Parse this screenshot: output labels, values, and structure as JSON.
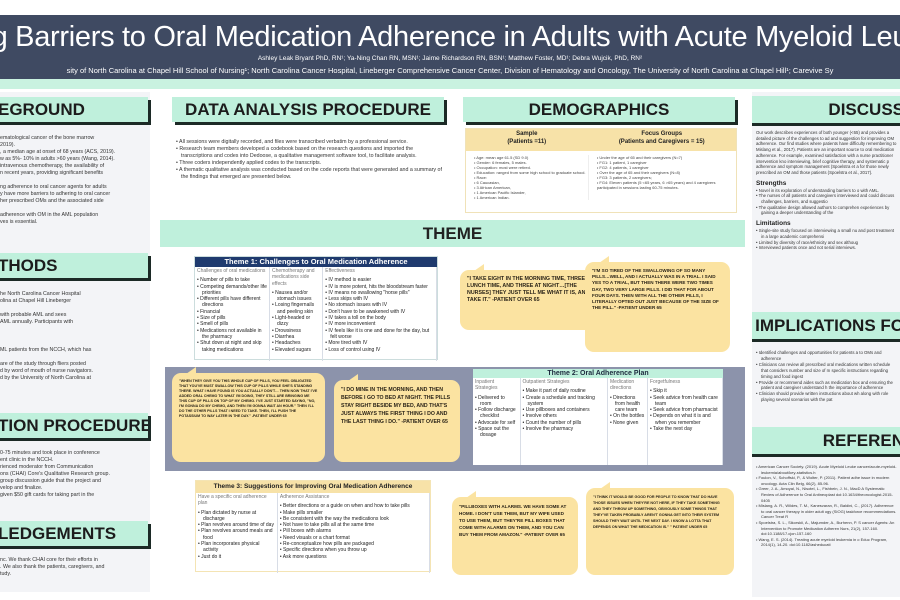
{
  "header": {
    "title": "nding Barriers to Oral Medication Adherence in Adults with Acute Myeloid Leukem",
    "authors": "Ashley Leak Bryant PhD, RN¹; Ya-Ning Chan RN, MSN¹; Jaime Richardson RN, BSN¹; Matthew Foster, MD¹; Debra Wujcik, PhD, RN²",
    "affiliations": "sity of North Carolina at Chapel Hill School of Nursing¹; North Carolina Cancer Hospital, Lineberger Comprehensive Cancer Center, Division of Hematology and Oncology, The University of North Carolina at Chapel Hill¹; Carevive Sy"
  },
  "background": {
    "heading": "EGROUND",
    "lines": [
      "ematological cancer of the bone marrow",
      " 2019).",
      ", a median age at onset of 68 years (ACS, 2019).",
      "w as 5%- 10% in adults >60 years (Wang, 2014).",
      "intravenous chemotherapy, the availability of",
      "n recent years, providing significant benefits",
      "",
      "ng adherence to oral cancer agents for adults",
      "y have more barriers to adhering to oral cancer",
      "her prescribed OMs and the associated side",
      "",
      "adherence with OM in the AML population",
      "ves is essential."
    ]
  },
  "methods": {
    "heading": "THODS",
    "lines": [
      "he North Carolina Cancer Hospital",
      "olina at Chapel Hill Lineberger",
      "",
      "with probable AML and sees",
      "AML annually. Participants with",
      "",
      "",
      "",
      "ML patients from the NCCH, which has",
      "",
      "are of the study through fliers posted",
      "d by word of mouth of nurse navigators.",
      "d by the University of North Carolina at"
    ]
  },
  "participation": {
    "heading": "TION PROCEDURE",
    "lines": [
      "0-75 minutes and took place in conference",
      "ent clinic in the NCCH.",
      "rienced moderator from Communication",
      "ons (CHAI) Core's Qualitative Research group.",
      "group discussion guide that the project and",
      "velop and finalize.",
      "given $50 gift cards for taking part in the"
    ]
  },
  "acknowledgements": {
    "heading": "LEDGEMENTS",
    "lines": [
      "nc. We thank CHAI core for their efforts in",
      ". We also thank the patients, caregivers, and",
      "tudy."
    ]
  },
  "data_analysis": {
    "heading": "DATA ANALYSIS PROCEDURE",
    "bullets": [
      "All sessions were digitally recorded, and files were transcribed verbatim by a professional service.",
      "Research team members developed a codebook based on the research questions and imported the transcriptions and codes into Dedoose, a qualitative management software tool, to facilitate analysis.",
      "Three coders independently applied codes to the transcripts.",
      "A thematic qualitative analysis was conducted based on the code reports that were generated and a summary of the findings that emerged are presented below."
    ]
  },
  "demographics": {
    "heading": "DEMOGRAPHICS",
    "sample_header": "Sample\n(Patients =11)",
    "focus_header": "Focus Groups\n(Patients and Caregivers = 15)",
    "sample": [
      "Age: mean age 61.5 (SD 9.0)",
      "Gender: 6 females, 5 males.",
      "Occupation: most were retired.",
      "Education: ranged from some high school to graduate school.",
      "Race:",
      "6 Caucasian,",
      "3 African American,",
      "1 American Pacific Islander,",
      "1 American Indian."
    ],
    "focus": [
      "Under the age of 65 and their caregivers (N=7)",
      "FG1: 1 patient, 1 caregiver",
      "FG2: 4 patients, 1 caregiver",
      "Over the age of 65 and their caregivers (N=8)",
      "FG3: 3 patients, 2 caregivers;",
      "FG4: Eleven patients (5 <65 years, 6 >65 years) and 4 caregivers participated in sessions lasting 60-75 minutes."
    ]
  },
  "theme": {
    "heading": "THEME"
  },
  "theme1": {
    "title": "Theme 1: Challenges to Oral Medication Adherence",
    "cols": [
      {
        "head": "Challenges of oral medications",
        "items": [
          "Number of pills to take",
          "Competing demands/other life priorities",
          "Different pills have different directions",
          "Financial",
          "Size of pills",
          "Smell of pills",
          "Medications not available in the pharmacy",
          "Shut down at night and skip taking medications"
        ]
      },
      {
        "head": "Chemotherapy and medications side effects",
        "items": [
          "Nausea and/or stomach issues",
          "Losing fingernails and peeling skin",
          "Light-headed or dizzy",
          "Drowsiness",
          "Diarrhea",
          "Headaches",
          "Elevated sugars"
        ]
      },
      {
        "head": "Effectiveness",
        "items": [
          "IV method is easier",
          "IV is more potent, hits the bloodstream faster",
          "IV means no swallowing \"horse pills\"",
          "Less skips with IV",
          "No stomach issues with IV",
          "Don't have to be awakened with IV",
          "IV takes a toll on the body",
          "IV more inconvenient",
          "IV feels like it is one and done for the day, but felt worse",
          "More tired with IV",
          "Loss of control using IV"
        ]
      }
    ]
  },
  "theme2": {
    "title": "Theme 2: Oral Adherence Plan",
    "cols": [
      {
        "head": "Inpatient Strategies",
        "items": [
          "Delivered to room",
          "Follow discharge checklist",
          "Advocate for self",
          "Space out the dosage"
        ]
      },
      {
        "head": "Outpatient Strategies",
        "items": [
          "Make it part of daily routine",
          "Create a schedule and tracking system",
          "Use pillboxes and containers",
          "Involve others",
          "Count the number of pills",
          "Involve the pharmacy"
        ]
      },
      {
        "head": "Medication directions",
        "items": [
          "Directions from health care team",
          "On the bottles",
          "None given"
        ]
      },
      {
        "head": "Forgetfulness",
        "items": [
          "Skip it",
          "Seek advice from health care team",
          "Seek advice from pharmacist",
          "Depends on what it is and when you remember",
          "Take the next day"
        ]
      }
    ]
  },
  "theme3": {
    "title": "Theme 3: Suggestions for Improving Oral Medication Adherence",
    "cols": [
      {
        "head": "Have a specific oral adherence plan",
        "items": [
          "Plan dictated by nurse at discharge",
          "Plan revolves around time of day",
          "Plan revolves around meals and food",
          "Plan incorporates physical activity",
          "Just do it"
        ]
      },
      {
        "head": "Adherence Assistance",
        "items": [
          "Better directions or a guide on when and how to take pills",
          "Make pills smaller",
          "Be consistent with the way the medications look",
          "Not have to take pills all at the same time",
          "Pill boxes with alarms",
          "Need visuals or a chart format",
          "Re-conceptualize how pills are packaged",
          "Specific directions when you throw up",
          "Ask more questions"
        ]
      }
    ]
  },
  "quotes": [
    {
      "text": "\"I take eight in the morning time, three at lunch time, and three at night…[the nurses] they just tell me what it is, and I take it.\" -Patient over 65"
    },
    {
      "text": "\"I'm so tired of the swallowing of so many pills…well, and I actually was in a trial. I said yes to a trial, but then there were two times day, two very large pills. I did that for about four days. Then with all the other pills, I literally opted out just because of the size of the pill.\" -Patient under 65"
    },
    {
      "text": "\"When they give you this whole cup of pills, you feel obligated that you've must swallow this cup of pills while she's standing there. What I have found is you actually don't… Then now that I've added oral chemo to what I'm doing, they still are bringing me this cup of pills on top of my chemo. I've just started saying, \"No, I'm gonna do my chemo, and then I'm gonna wait an hour.\" Then I'll do the other pills that I need to take. Then, I'll push the potassium to way later in the day.\" -Patient under 65"
    },
    {
      "text": "\"I do mine in the morning, and then before I go to bed at night. The pills stay right beside my bed, and that's just always the first thing I do and the last thing I do.\" -Patient over 65"
    },
    {
      "text": "\"Pillboxes with alarms. We have some at home. I don't use them, but my wife used to use them, but they're pill boxes that come with alarms on them, and you can buy them from Amazon.\" -Patient over 65"
    },
    {
      "text": "\"I think it would be good for people to know that do have those issues when they're not here, if they take something and they throw up something, obviously some things that they've taken probably aren't gonna get into their system should they wait until the next day. I know a lotta that depends on what the medication is.\" \" Patient under 65"
    }
  ],
  "discussion": {
    "heading": "DISCUSS",
    "para": "Our work describes experiences of both younger (<65) and provides a detailed picture of the challenges to ad and suggestion for improving OM adherence. Our find studies where patients have difficulty remembering to Mislang et al., 2017). Patients are an important source to oral medication adherence. For example, examined satisfaction with a nurse practitioner intervention kno interviewing, brief cognitive therapy, and systematic p adherence and symptom management (Spoelstra et a for those newly prescribed an OM and those patients (Spoelstra et al., 2017).",
    "strengths_label": "Strengths",
    "strengths": [
      "Novel in its exploration of understanding barriers to o with AML.",
      "The nurses of all patients and caregivers interviewed and could discuss challenges, barriers, and suggestio",
      "The qualitative design allowed authors to comprehen experiences by gaining a deeper understanding of the"
    ],
    "limitations_label": "Limitations",
    "limitations": [
      "Single-site study focused on interviewing a small nu and post treatment in a large academic comprehensi",
      "Limited by diversity of race/ethnicity and sex althoug",
      "Interviewed patients once and not serial interviews."
    ]
  },
  "implications": {
    "heading": "IMPLICATIONS FO",
    "bullets": [
      "Identified challenges and opportunities for patients a to OMs and adherence",
      "Clinicians can review all prescribed oral medications written schedule that considers number and size of m specific instructions regarding timing and food ingest",
      "Provide or recommend aides such as medication box and ensuring the patient and caregiver understand h the importance of adherence",
      "Clinician should provide written instructions about wh along with role playing several scenarios with the pat"
    ]
  },
  "references": {
    "heading": "REFEREN",
    "items": [
      "American Cancer Society. (2019). Acute Myeloid Leuke cancer/acute-myeloid-leukemia/about/key-statistics.h",
      "Foulon, V., Schoffski, P., & Wolter, P. (2011). Patient adhe issue in modern oncology. Acta Clin Belg, 66(2), 85-96.",
      "Greer, J. A., Amoyal, N., Nisotel, L., Fishbein, J. N., MacD A Systematic Review of Adherence to Oral Antineoplast doi:10.1634/theoncologist.2015-0405",
      "Mislang, A. R., Wildes, T. M., Kanesvaran, R., Baldini, C., (2017). Adherence to oral cancer therapy in older adult ogy (SIOG) taskforce recommendations. Cancer Treat R",
      "Spoelstra, S. L., Sikorskii, A., Majumder, A., Burhenn, P. S cancer Agents: An Intervention to Promote Medication Adheren Nurs, 21(2), 157-160. doi:10.1188/17.cjon.157-160",
      "Wang, E. S. (2014). Treating acute myeloid leukemia in o Educ Program, 2014(1), 14-20. doi:10.1182/asheducati"
    ]
  },
  "colors": {
    "header": "#3f4a62",
    "mint": "#bff0dc",
    "tan": "#fbe3a1",
    "navy": "#1f3a6e",
    "band": "#8c93ab"
  }
}
